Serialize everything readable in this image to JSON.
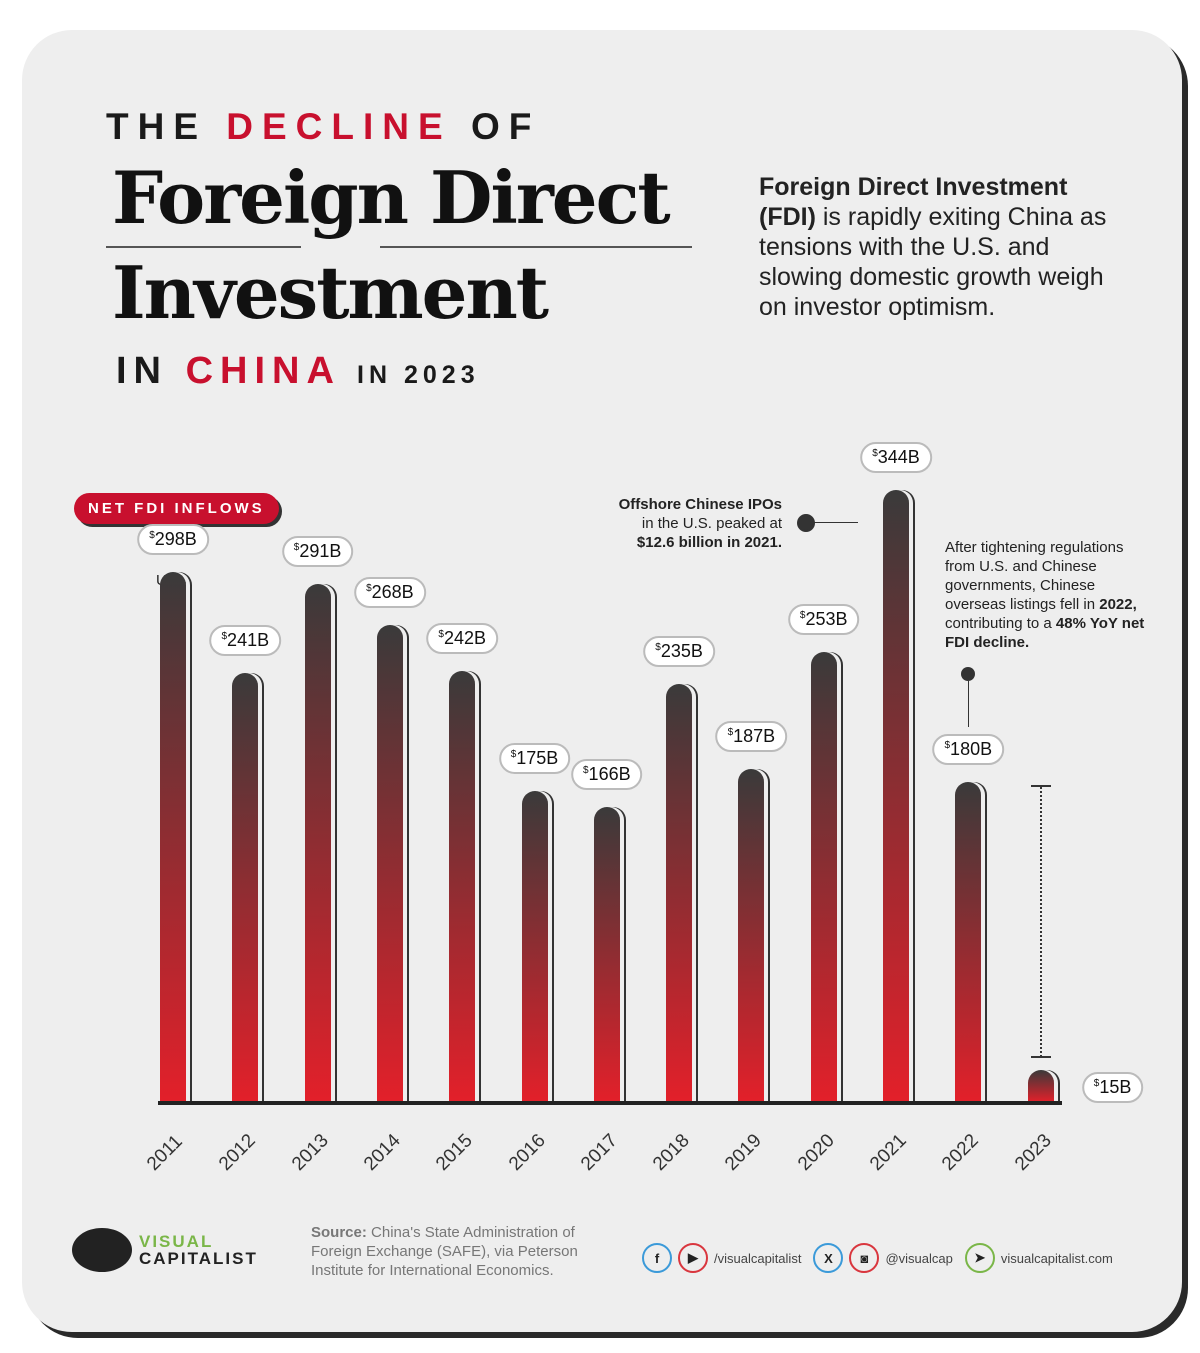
{
  "header": {
    "kicker_pre": "THE ",
    "kicker_accent": "DECLINE",
    "kicker_post": " OF",
    "title_line1": "Foreign Direct",
    "title_line2": "Investment",
    "sub_pre": "IN ",
    "sub_accent": "CHINA",
    "sub_post": "IN 2023"
  },
  "intro": {
    "bold": "Foreign Direct Investment (FDI)",
    "text": " is rapidly exiting China as tensions with the U.S. and slowing domestic growth weigh on investor optimism."
  },
  "legend": {
    "badge": "NET FDI INFLOWS",
    "unit": "USD"
  },
  "annotations": [
    {
      "lines": [
        "Offshore Chinese IPOs",
        "in the U.S. peaked at",
        "$12.6 billion in 2021."
      ]
    },
    {
      "text1": "After tightening regulations from U.S. and Chinese governments, Chinese overseas listings fell in ",
      "bold1": "2022,",
      "text2": " contributing to a ",
      "bold2": "48% YoY net FDI decline."
    }
  ],
  "chart_data": {
    "type": "bar",
    "categories": [
      "2011",
      "2012",
      "2013",
      "2014",
      "2015",
      "2016",
      "2017",
      "2018",
      "2019",
      "2020",
      "2021",
      "2022",
      "2023"
    ],
    "values": [
      298,
      241,
      291,
      268,
      242,
      175,
      166,
      235,
      187,
      253,
      344,
      180,
      15
    ],
    "labels": [
      "298B",
      "241B",
      "291B",
      "268B",
      "242B",
      "175B",
      "166B",
      "235B",
      "187B",
      "253B",
      "344B",
      "180B",
      "15B"
    ],
    "currency_symbol": "$",
    "ylabel": "USD",
    "colors": {
      "top": "#3a3a3a",
      "bottom": "#e3202a"
    }
  },
  "footer": {
    "brand_top": "VISUAL",
    "brand_bottom": "CAPITALIST",
    "source_label": "Source:",
    "source_text": " China's State Administration of Foreign Exchange (SAFE), via Peterson Institute for International Economics.",
    "social1": "/visualcapitalist",
    "social2": "@visualcap",
    "website": "visualcapitalist.com"
  }
}
